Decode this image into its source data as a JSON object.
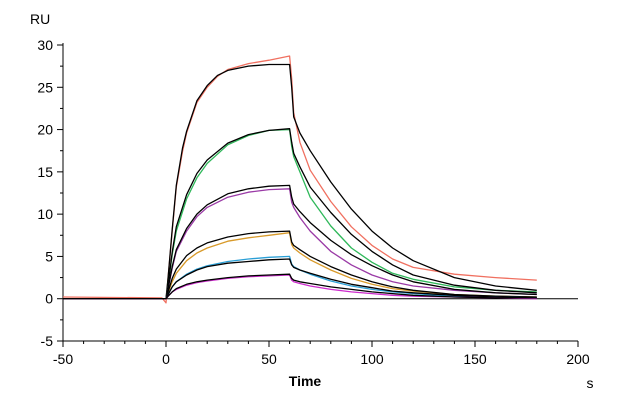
{
  "chart_data": {
    "type": "line",
    "title": "",
    "xlabel": "Time",
    "ylabel": "RU",
    "x_unit": "s",
    "xlim": [
      -50,
      200
    ],
    "ylim": [
      -5,
      30
    ],
    "xticks": [
      -50,
      0,
      50,
      100,
      150,
      200
    ],
    "yticks": [
      -5,
      0,
      5,
      10,
      15,
      20,
      25,
      30
    ],
    "grid": false,
    "legend": "none",
    "series": [
      {
        "color": "#f07060",
        "points": [
          [
            -50,
            0.2
          ],
          [
            -2,
            0.1
          ],
          [
            0,
            -0.5
          ],
          [
            1,
            2.5
          ],
          [
            3,
            8
          ],
          [
            5,
            13.2
          ],
          [
            8,
            17.4
          ],
          [
            10,
            19.6
          ],
          [
            15,
            23.2
          ],
          [
            20,
            25.0
          ],
          [
            25,
            26.3
          ],
          [
            30,
            27.1
          ],
          [
            40,
            27.8
          ],
          [
            50,
            28.2
          ],
          [
            60,
            28.7
          ],
          [
            61,
            26
          ],
          [
            62,
            22
          ],
          [
            65,
            18.5
          ],
          [
            70,
            15.2
          ],
          [
            80,
            11.5
          ],
          [
            90,
            8.5
          ],
          [
            100,
            6.3
          ],
          [
            110,
            4.7
          ],
          [
            120,
            3.7
          ],
          [
            140,
            2.9
          ],
          [
            160,
            2.5
          ],
          [
            180,
            2.2
          ]
        ]
      },
      {
        "color": "#000000",
        "points": [
          [
            -50,
            0
          ],
          [
            0,
            0
          ],
          [
            1,
            2.5
          ],
          [
            3,
            8.2
          ],
          [
            5,
            13.4
          ],
          [
            8,
            17.8
          ],
          [
            10,
            19.8
          ],
          [
            15,
            23.4
          ],
          [
            20,
            25.2
          ],
          [
            25,
            26.4
          ],
          [
            30,
            27.0
          ],
          [
            40,
            27.5
          ],
          [
            50,
            27.7
          ],
          [
            60,
            27.7
          ],
          [
            61,
            25
          ],
          [
            62,
            21.5
          ],
          [
            65,
            19.6
          ],
          [
            70,
            17.5
          ],
          [
            80,
            13.8
          ],
          [
            90,
            10.6
          ],
          [
            100,
            8.0
          ],
          [
            110,
            6.0
          ],
          [
            120,
            4.5
          ],
          [
            140,
            2.5
          ],
          [
            160,
            1.5
          ],
          [
            180,
            1.0
          ]
        ]
      },
      {
        "color": "#2fb85a",
        "points": [
          [
            -50,
            0
          ],
          [
            0,
            0
          ],
          [
            1,
            1.6
          ],
          [
            3,
            5.2
          ],
          [
            5,
            8.0
          ],
          [
            10,
            11.8
          ],
          [
            15,
            14.3
          ],
          [
            20,
            16.0
          ],
          [
            30,
            18.2
          ],
          [
            40,
            19.3
          ],
          [
            50,
            19.9
          ],
          [
            60,
            20.0
          ],
          [
            61,
            18.0
          ],
          [
            62,
            16.8
          ],
          [
            65,
            15.0
          ],
          [
            70,
            12.0
          ],
          [
            80,
            8.6
          ],
          [
            90,
            6.0
          ],
          [
            100,
            4.3
          ],
          [
            110,
            3.0
          ],
          [
            120,
            2.3
          ],
          [
            140,
            1.4
          ],
          [
            160,
            1.0
          ],
          [
            180,
            0.8
          ]
        ]
      },
      {
        "color": "#000000",
        "points": [
          [
            -50,
            0
          ],
          [
            0,
            0
          ],
          [
            1,
            1.6
          ],
          [
            3,
            5.5
          ],
          [
            5,
            8.5
          ],
          [
            10,
            12.3
          ],
          [
            15,
            14.8
          ],
          [
            20,
            16.4
          ],
          [
            30,
            18.4
          ],
          [
            40,
            19.4
          ],
          [
            50,
            19.9
          ],
          [
            60,
            20.1
          ],
          [
            61,
            18.5
          ],
          [
            62,
            17.2
          ],
          [
            65,
            15.6
          ],
          [
            70,
            13.2
          ],
          [
            80,
            10.2
          ],
          [
            90,
            7.6
          ],
          [
            100,
            5.6
          ],
          [
            110,
            4.0
          ],
          [
            120,
            2.8
          ],
          [
            140,
            1.6
          ],
          [
            160,
            1.0
          ],
          [
            180,
            0.7
          ]
        ]
      },
      {
        "color": "#9a3aa6",
        "points": [
          [
            -50,
            0
          ],
          [
            0,
            0
          ],
          [
            1,
            1.2
          ],
          [
            3,
            3.6
          ],
          [
            5,
            5.6
          ],
          [
            10,
            8.0
          ],
          [
            15,
            9.7
          ],
          [
            20,
            10.8
          ],
          [
            30,
            12.0
          ],
          [
            40,
            12.6
          ],
          [
            50,
            12.9
          ],
          [
            60,
            13.0
          ],
          [
            61,
            11.4
          ],
          [
            62,
            10.8
          ],
          [
            65,
            9.6
          ],
          [
            70,
            8.0
          ],
          [
            80,
            5.6
          ],
          [
            90,
            4.0
          ],
          [
            100,
            2.8
          ],
          [
            110,
            2.0
          ],
          [
            120,
            1.5
          ],
          [
            140,
            1.0
          ],
          [
            160,
            0.7
          ],
          [
            180,
            0.5
          ]
        ]
      },
      {
        "color": "#000000",
        "points": [
          [
            -50,
            0
          ],
          [
            0,
            0
          ],
          [
            1,
            1.2
          ],
          [
            3,
            3.8
          ],
          [
            5,
            5.8
          ],
          [
            10,
            8.3
          ],
          [
            15,
            10.0
          ],
          [
            20,
            11.1
          ],
          [
            30,
            12.4
          ],
          [
            40,
            13.0
          ],
          [
            50,
            13.3
          ],
          [
            60,
            13.4
          ],
          [
            61,
            12.0
          ],
          [
            62,
            11.2
          ],
          [
            65,
            10.3
          ],
          [
            70,
            9.0
          ],
          [
            80,
            6.9
          ],
          [
            90,
            5.2
          ],
          [
            100,
            3.9
          ],
          [
            110,
            2.8
          ],
          [
            120,
            2.0
          ],
          [
            140,
            1.1
          ],
          [
            160,
            0.7
          ],
          [
            180,
            0.5
          ]
        ]
      },
      {
        "color": "#d89a2a",
        "points": [
          [
            -50,
            0
          ],
          [
            0,
            0
          ],
          [
            1,
            0.7
          ],
          [
            3,
            2.0
          ],
          [
            5,
            3.0
          ],
          [
            10,
            4.5
          ],
          [
            15,
            5.4
          ],
          [
            20,
            6.0
          ],
          [
            30,
            6.8
          ],
          [
            40,
            7.2
          ],
          [
            50,
            7.5
          ],
          [
            60,
            7.8
          ],
          [
            61,
            6.4
          ],
          [
            62,
            6.0
          ],
          [
            65,
            5.4
          ],
          [
            70,
            4.6
          ],
          [
            80,
            3.4
          ],
          [
            90,
            2.4
          ],
          [
            100,
            1.7
          ],
          [
            110,
            1.2
          ],
          [
            120,
            0.9
          ],
          [
            140,
            0.5
          ],
          [
            160,
            0.3
          ],
          [
            180,
            0.2
          ]
        ]
      },
      {
        "color": "#000000",
        "points": [
          [
            -50,
            0
          ],
          [
            0,
            0
          ],
          [
            1,
            0.8
          ],
          [
            3,
            2.4
          ],
          [
            5,
            3.5
          ],
          [
            10,
            5.1
          ],
          [
            15,
            6.0
          ],
          [
            20,
            6.6
          ],
          [
            30,
            7.3
          ],
          [
            40,
            7.7
          ],
          [
            50,
            7.9
          ],
          [
            60,
            8.0
          ],
          [
            61,
            6.7
          ],
          [
            62,
            6.3
          ],
          [
            65,
            5.8
          ],
          [
            70,
            5.0
          ],
          [
            80,
            3.8
          ],
          [
            90,
            2.8
          ],
          [
            100,
            2.0
          ],
          [
            110,
            1.4
          ],
          [
            120,
            1.0
          ],
          [
            140,
            0.5
          ],
          [
            160,
            0.3
          ],
          [
            180,
            0.2
          ]
        ]
      },
      {
        "color": "#2a9fd6",
        "points": [
          [
            -50,
            0
          ],
          [
            0,
            0
          ],
          [
            1,
            0.5
          ],
          [
            3,
            1.4
          ],
          [
            5,
            2.0
          ],
          [
            10,
            2.9
          ],
          [
            15,
            3.5
          ],
          [
            20,
            3.9
          ],
          [
            30,
            4.4
          ],
          [
            40,
            4.7
          ],
          [
            50,
            4.9
          ],
          [
            60,
            5.0
          ],
          [
            61,
            4.1
          ],
          [
            62,
            3.8
          ],
          [
            65,
            3.4
          ],
          [
            70,
            2.9
          ],
          [
            80,
            2.1
          ],
          [
            90,
            1.5
          ],
          [
            100,
            1.1
          ],
          [
            110,
            0.8
          ],
          [
            120,
            0.6
          ],
          [
            140,
            0.3
          ],
          [
            160,
            0.2
          ],
          [
            180,
            0.1
          ]
        ]
      },
      {
        "color": "#000000",
        "points": [
          [
            -50,
            0
          ],
          [
            0,
            0
          ],
          [
            1,
            0.5
          ],
          [
            3,
            1.4
          ],
          [
            5,
            2.0
          ],
          [
            10,
            2.8
          ],
          [
            15,
            3.4
          ],
          [
            20,
            3.8
          ],
          [
            30,
            4.2
          ],
          [
            40,
            4.4
          ],
          [
            50,
            4.6
          ],
          [
            60,
            4.7
          ],
          [
            61,
            4.0
          ],
          [
            62,
            3.7
          ],
          [
            65,
            3.4
          ],
          [
            70,
            3.0
          ],
          [
            80,
            2.3
          ],
          [
            90,
            1.7
          ],
          [
            100,
            1.3
          ],
          [
            110,
            0.9
          ],
          [
            120,
            0.7
          ],
          [
            140,
            0.4
          ],
          [
            160,
            0.2
          ],
          [
            180,
            0.1
          ]
        ]
      },
      {
        "color": "#cc2acc",
        "points": [
          [
            -50,
            0
          ],
          [
            0,
            0
          ],
          [
            1,
            0.3
          ],
          [
            3,
            0.8
          ],
          [
            5,
            1.1
          ],
          [
            10,
            1.6
          ],
          [
            15,
            1.9
          ],
          [
            20,
            2.1
          ],
          [
            30,
            2.4
          ],
          [
            40,
            2.6
          ],
          [
            50,
            2.7
          ],
          [
            60,
            2.8
          ],
          [
            61,
            2.2
          ],
          [
            62,
            2.0
          ],
          [
            65,
            1.8
          ],
          [
            70,
            1.5
          ],
          [
            80,
            1.1
          ],
          [
            90,
            0.8
          ],
          [
            100,
            0.6
          ],
          [
            110,
            0.4
          ],
          [
            120,
            0.3
          ],
          [
            140,
            0.2
          ],
          [
            160,
            0.1
          ],
          [
            180,
            0.0
          ]
        ]
      },
      {
        "color": "#000000",
        "points": [
          [
            -50,
            0
          ],
          [
            0,
            0
          ],
          [
            1,
            0.3
          ],
          [
            3,
            0.8
          ],
          [
            5,
            1.2
          ],
          [
            10,
            1.7
          ],
          [
            15,
            2.0
          ],
          [
            20,
            2.2
          ],
          [
            30,
            2.5
          ],
          [
            40,
            2.7
          ],
          [
            50,
            2.8
          ],
          [
            60,
            2.9
          ],
          [
            61,
            2.4
          ],
          [
            62,
            2.2
          ],
          [
            65,
            2.0
          ],
          [
            70,
            1.8
          ],
          [
            80,
            1.4
          ],
          [
            90,
            1.1
          ],
          [
            100,
            0.8
          ],
          [
            110,
            0.6
          ],
          [
            120,
            0.4
          ],
          [
            140,
            0.2
          ],
          [
            160,
            0.1
          ],
          [
            180,
            0.1
          ]
        ]
      }
    ]
  }
}
